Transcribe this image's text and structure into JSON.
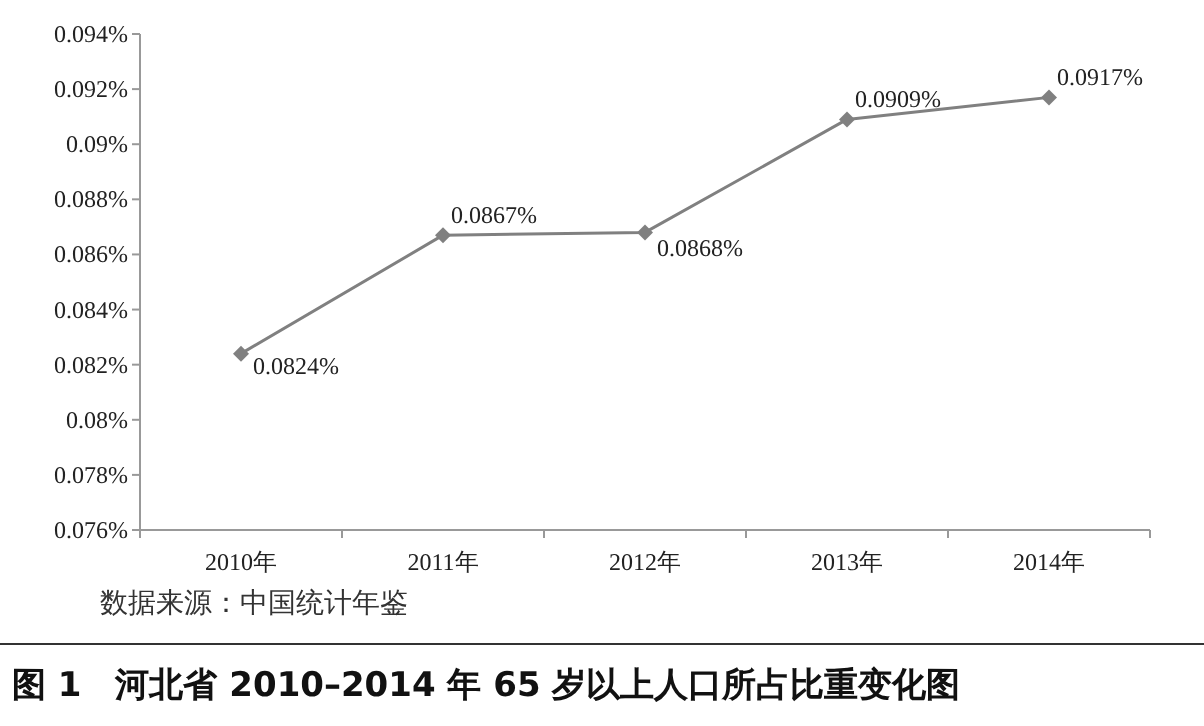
{
  "chart_data": {
    "type": "line",
    "title": "图 1　河北省 2010–2014 年 65 岁以上人口所占比重变化图",
    "annotations": [
      "数据来源：中国统计年鉴"
    ],
    "categories": [
      "2010年",
      "2011年",
      "2012年",
      "2013年",
      "2014年"
    ],
    "series": [
      {
        "color": "#808080",
        "values": [
          0.0824,
          0.0867,
          0.0868,
          0.0909,
          0.0917
        ],
        "value_labels": [
          "0.0824%",
          "0.0867%",
          "0.0868%",
          "0.0909%",
          "0.0917%"
        ]
      }
    ],
    "ylim": [
      0.076,
      0.094
    ],
    "yticks": [
      {
        "value": 0.076,
        "label": "0.076%"
      },
      {
        "value": 0.078,
        "label": "0.078%"
      },
      {
        "value": 0.08,
        "label": "0.08%"
      },
      {
        "value": 0.082,
        "label": "0.082%"
      },
      {
        "value": 0.084,
        "label": "0.084%"
      },
      {
        "value": 0.086,
        "label": "0.086%"
      },
      {
        "value": 0.088,
        "label": "0.088%"
      },
      {
        "value": 0.09,
        "label": "0.09%"
      },
      {
        "value": 0.092,
        "label": "0.092%"
      },
      {
        "value": 0.094,
        "label": "0.094%"
      }
    ],
    "marker": "diamond",
    "line_style": "solid",
    "grid": false
  }
}
